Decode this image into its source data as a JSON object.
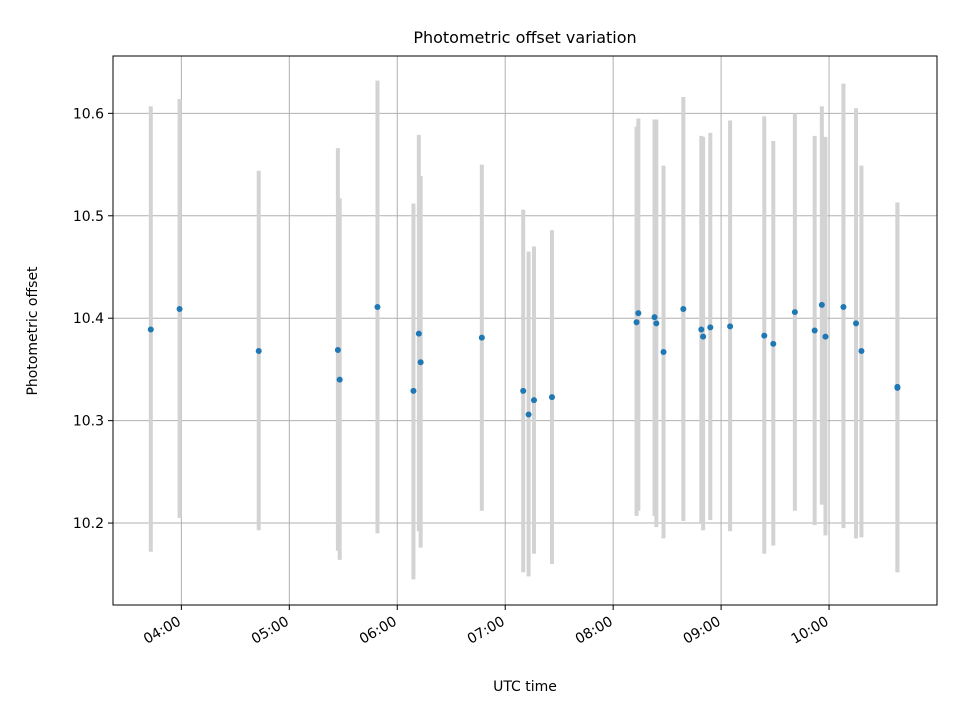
{
  "chart_data": {
    "type": "scatter",
    "title": "Photometric offset variation",
    "xlabel": "UTC time",
    "ylabel": "Photometric offset",
    "x_tick_labels": [
      "04:00",
      "05:00",
      "06:00",
      "07:00",
      "08:00",
      "09:00",
      "10:00"
    ],
    "y_tick_labels": [
      "10.2",
      "10.3",
      "10.4",
      "10.5",
      "10.6"
    ],
    "x_ticks": [
      "04:00",
      "05:00",
      "06:00",
      "07:00",
      "08:00",
      "09:00",
      "10:00"
    ],
    "y_ticks": [
      10.2,
      10.3,
      10.4,
      10.5,
      10.6
    ],
    "xlim": [
      "03:22",
      "11:00"
    ],
    "ylim": [
      10.12,
      10.656
    ],
    "grid": true,
    "marker_color": "#1f77b4",
    "errorbar_color": "#d3d3d3",
    "points": [
      {
        "x": "03:43",
        "y": 10.389,
        "ylo": 10.172,
        "yhi": 10.607
      },
      {
        "x": "03:59",
        "y": 10.409,
        "ylo": 10.205,
        "yhi": 10.614
      },
      {
        "x": "04:43",
        "y": 10.368,
        "ylo": 10.193,
        "yhi": 10.544
      },
      {
        "x": "05:27",
        "y": 10.369,
        "ylo": 10.173,
        "yhi": 10.566
      },
      {
        "x": "05:28",
        "y": 10.34,
        "ylo": 10.164,
        "yhi": 10.517
      },
      {
        "x": "05:49",
        "y": 10.411,
        "ylo": 10.19,
        "yhi": 10.632
      },
      {
        "x": "06:09",
        "y": 10.329,
        "ylo": 10.145,
        "yhi": 10.512
      },
      {
        "x": "06:12",
        "y": 10.385,
        "ylo": 10.192,
        "yhi": 10.579
      },
      {
        "x": "06:13",
        "y": 10.357,
        "ylo": 10.176,
        "yhi": 10.539
      },
      {
        "x": "06:47",
        "y": 10.381,
        "ylo": 10.212,
        "yhi": 10.55
      },
      {
        "x": "07:10",
        "y": 10.329,
        "ylo": 10.152,
        "yhi": 10.506
      },
      {
        "x": "07:13",
        "y": 10.306,
        "ylo": 10.148,
        "yhi": 10.465
      },
      {
        "x": "07:16",
        "y": 10.32,
        "ylo": 10.17,
        "yhi": 10.47
      },
      {
        "x": "07:26",
        "y": 10.323,
        "ylo": 10.16,
        "yhi": 10.486
      },
      {
        "x": "08:13",
        "y": 10.396,
        "ylo": 10.207,
        "yhi": 10.587
      },
      {
        "x": "08:14",
        "y": 10.405,
        "ylo": 10.212,
        "yhi": 10.595
      },
      {
        "x": "08:23",
        "y": 10.401,
        "ylo": 10.207,
        "yhi": 10.594
      },
      {
        "x": "08:24",
        "y": 10.395,
        "ylo": 10.196,
        "yhi": 10.594
      },
      {
        "x": "08:28",
        "y": 10.367,
        "ylo": 10.185,
        "yhi": 10.549
      },
      {
        "x": "08:39",
        "y": 10.409,
        "ylo": 10.202,
        "yhi": 10.616
      },
      {
        "x": "08:49",
        "y": 10.389,
        "ylo": 10.2,
        "yhi": 10.578
      },
      {
        "x": "08:50",
        "y": 10.382,
        "ylo": 10.193,
        "yhi": 10.577
      },
      {
        "x": "08:54",
        "y": 10.391,
        "ylo": 10.203,
        "yhi": 10.581
      },
      {
        "x": "09:05",
        "y": 10.392,
        "ylo": 10.192,
        "yhi": 10.593
      },
      {
        "x": "09:24",
        "y": 10.383,
        "ylo": 10.17,
        "yhi": 10.597
      },
      {
        "x": "09:29",
        "y": 10.375,
        "ylo": 10.178,
        "yhi": 10.573
      },
      {
        "x": "09:41",
        "y": 10.406,
        "ylo": 10.212,
        "yhi": 10.6
      },
      {
        "x": "09:52",
        "y": 10.388,
        "ylo": 10.198,
        "yhi": 10.578
      },
      {
        "x": "09:56",
        "y": 10.413,
        "ylo": 10.218,
        "yhi": 10.607
      },
      {
        "x": "09:58",
        "y": 10.382,
        "ylo": 10.188,
        "yhi": 10.577
      },
      {
        "x": "10:08",
        "y": 10.411,
        "ylo": 10.195,
        "yhi": 10.629
      },
      {
        "x": "10:15",
        "y": 10.395,
        "ylo": 10.185,
        "yhi": 10.605
      },
      {
        "x": "10:18",
        "y": 10.368,
        "ylo": 10.186,
        "yhi": 10.549
      },
      {
        "x": "10:38",
        "y": 10.332,
        "ylo": 10.152,
        "yhi": 10.513
      },
      {
        "x": "10:38",
        "y": 10.333,
        "ylo": 10.152,
        "yhi": 10.513
      }
    ]
  }
}
